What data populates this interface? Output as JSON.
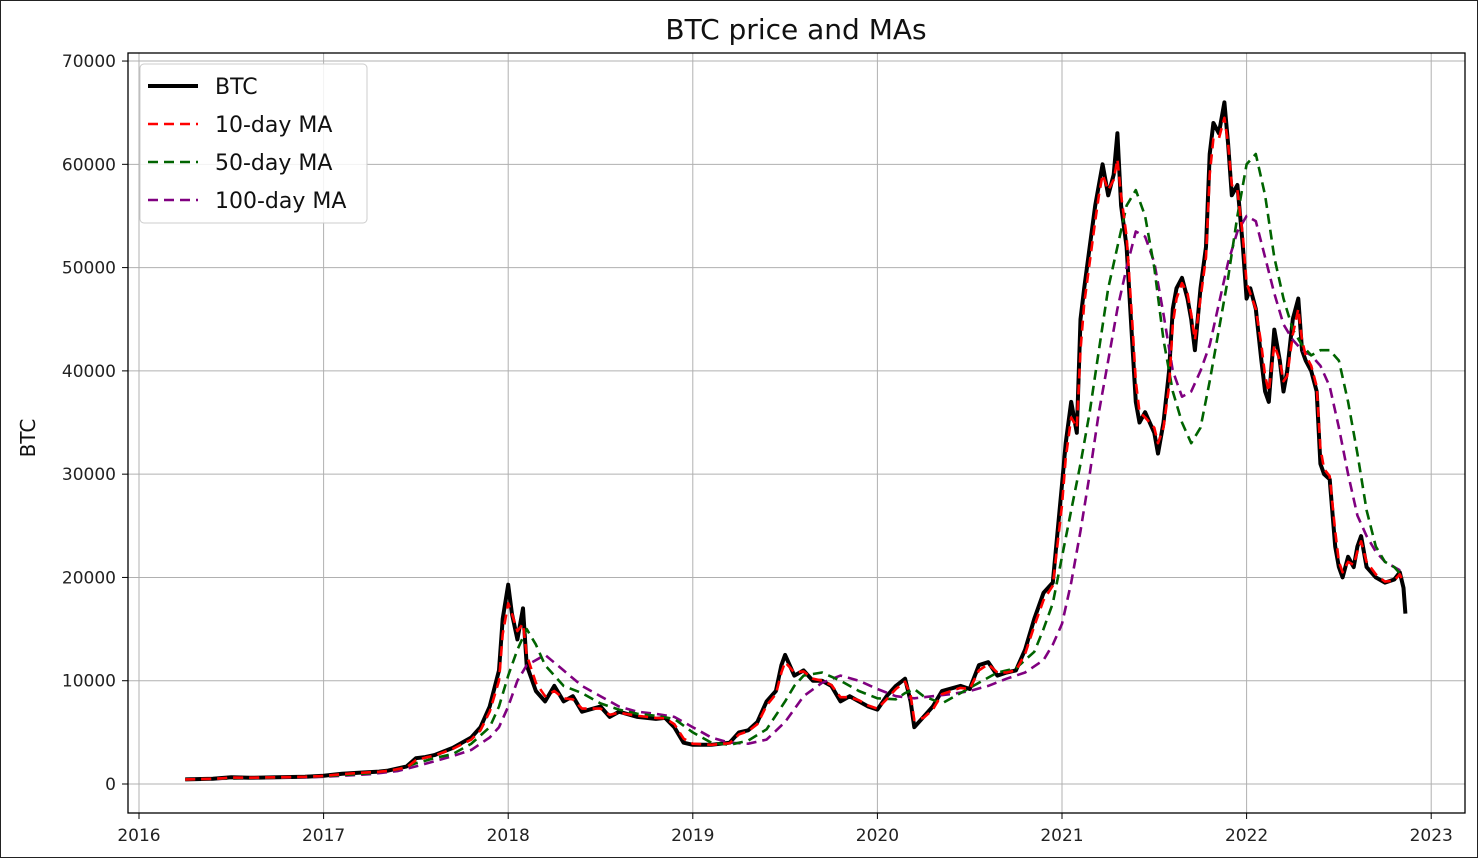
{
  "chart_data": {
    "type": "line",
    "title": "BTC price and MAs",
    "xlabel": "",
    "ylabel": "BTC",
    "xlim": [
      2016.0,
      2023.0
    ],
    "ylim": [
      -2800,
      71000
    ],
    "x_ticks": [
      "2016",
      "2017",
      "2018",
      "2019",
      "2020",
      "2021",
      "2022",
      "2023"
    ],
    "y_ticks": [
      "0",
      "10000",
      "20000",
      "30000",
      "40000",
      "50000",
      "60000",
      "70000"
    ],
    "grid": true,
    "legend_position": "top-left",
    "series": [
      {
        "name": "BTC",
        "color": "#000000",
        "dash": "solid",
        "x": [
          2016.25,
          2016.4,
          2016.5,
          2016.6,
          2016.75,
          2016.9,
          2017.0,
          2017.1,
          2017.2,
          2017.3,
          2017.35,
          2017.45,
          2017.5,
          2017.55,
          2017.6,
          2017.7,
          2017.8,
          2017.85,
          2017.9,
          2017.95,
          2017.97,
          2018.0,
          2018.02,
          2018.05,
          2018.08,
          2018.1,
          2018.15,
          2018.2,
          2018.25,
          2018.3,
          2018.35,
          2018.4,
          2018.5,
          2018.55,
          2018.6,
          2018.7,
          2018.8,
          2018.85,
          2018.9,
          2018.95,
          2019.0,
          2019.1,
          2019.2,
          2019.25,
          2019.3,
          2019.35,
          2019.4,
          2019.45,
          2019.48,
          2019.5,
          2019.55,
          2019.6,
          2019.65,
          2019.7,
          2019.75,
          2019.8,
          2019.85,
          2019.9,
          2019.95,
          2020.0,
          2020.05,
          2020.1,
          2020.15,
          2020.18,
          2020.2,
          2020.25,
          2020.3,
          2020.35,
          2020.45,
          2020.5,
          2020.55,
          2020.6,
          2020.65,
          2020.7,
          2020.75,
          2020.8,
          2020.85,
          2020.9,
          2020.95,
          2021.0,
          2021.02,
          2021.05,
          2021.08,
          2021.1,
          2021.12,
          2021.15,
          2021.18,
          2021.2,
          2021.22,
          2021.25,
          2021.28,
          2021.3,
          2021.32,
          2021.35,
          2021.38,
          2021.4,
          2021.42,
          2021.45,
          2021.5,
          2021.52,
          2021.55,
          2021.58,
          2021.6,
          2021.62,
          2021.65,
          2021.68,
          2021.7,
          2021.72,
          2021.75,
          2021.78,
          2021.8,
          2021.82,
          2021.85,
          2021.88,
          2021.9,
          2021.92,
          2021.95,
          2021.98,
          2022.0,
          2022.02,
          2022.05,
          2022.08,
          2022.1,
          2022.12,
          2022.15,
          2022.18,
          2022.2,
          2022.22,
          2022.25,
          2022.28,
          2022.3,
          2022.32,
          2022.35,
          2022.38,
          2022.4,
          2022.42,
          2022.45,
          2022.48,
          2022.5,
          2022.52,
          2022.55,
          2022.58,
          2022.6,
          2022.62,
          2022.65,
          2022.7,
          2022.75,
          2022.8,
          2022.83,
          2022.85,
          2022.86
        ],
        "y": [
          450,
          500,
          650,
          600,
          650,
          700,
          800,
          1000,
          1100,
          1200,
          1300,
          1700,
          2500,
          2600,
          2800,
          3500,
          4500,
          5500,
          7500,
          11000,
          16000,
          19300,
          16500,
          14000,
          17000,
          11500,
          9000,
          8000,
          9500,
          8000,
          8500,
          7000,
          7500,
          6500,
          7000,
          6500,
          6300,
          6400,
          5500,
          4000,
          3800,
          3800,
          4000,
          5000,
          5200,
          6000,
          8000,
          9000,
          11500,
          12500,
          10500,
          11000,
          10000,
          10000,
          9500,
          8000,
          8500,
          8000,
          7500,
          7200,
          8500,
          9500,
          10200,
          8000,
          5500,
          6500,
          7500,
          9000,
          9500,
          9200,
          11500,
          11800,
          10500,
          10800,
          11000,
          13000,
          16000,
          18500,
          19500,
          29000,
          33000,
          37000,
          34000,
          45000,
          48000,
          52000,
          56000,
          58000,
          60000,
          57000,
          59000,
          63000,
          56000,
          52000,
          43000,
          37000,
          35000,
          36000,
          34000,
          32000,
          35000,
          40000,
          46000,
          48000,
          49000,
          47000,
          45000,
          42000,
          48000,
          52000,
          61000,
          64000,
          63000,
          66000,
          62000,
          57000,
          58000,
          52000,
          47000,
          48000,
          46000,
          41000,
          38000,
          37000,
          44000,
          41000,
          38000,
          40000,
          45000,
          47000,
          42000,
          41000,
          40000,
          38000,
          31000,
          30000,
          29500,
          23000,
          21000,
          20000,
          22000,
          21000,
          23000,
          24000,
          21000,
          20000,
          19500,
          19800,
          20500,
          19000,
          16500
        ]
      },
      {
        "name": "10-day MA",
        "color": "#ff0000",
        "dash": "dashed",
        "x": [
          2016.25,
          2016.4,
          2016.5,
          2016.6,
          2016.75,
          2016.9,
          2017.0,
          2017.1,
          2017.2,
          2017.3,
          2017.35,
          2017.45,
          2017.5,
          2017.55,
          2017.6,
          2017.7,
          2017.8,
          2017.85,
          2017.9,
          2017.95,
          2017.97,
          2018.0,
          2018.02,
          2018.05,
          2018.08,
          2018.1,
          2018.15,
          2018.2,
          2018.25,
          2018.3,
          2018.35,
          2018.4,
          2018.5,
          2018.55,
          2018.6,
          2018.7,
          2018.8,
          2018.85,
          2018.9,
          2018.95,
          2019.0,
          2019.1,
          2019.2,
          2019.25,
          2019.3,
          2019.35,
          2019.4,
          2019.45,
          2019.48,
          2019.5,
          2019.55,
          2019.6,
          2019.65,
          2019.7,
          2019.75,
          2019.8,
          2019.85,
          2019.9,
          2019.95,
          2020.0,
          2020.05,
          2020.1,
          2020.15,
          2020.18,
          2020.2,
          2020.25,
          2020.3,
          2020.35,
          2020.45,
          2020.5,
          2020.55,
          2020.6,
          2020.65,
          2020.7,
          2020.75,
          2020.8,
          2020.85,
          2020.9,
          2020.95,
          2021.0,
          2021.02,
          2021.05,
          2021.08,
          2021.1,
          2021.12,
          2021.15,
          2021.18,
          2021.2,
          2021.22,
          2021.25,
          2021.28,
          2021.3,
          2021.32,
          2021.35,
          2021.38,
          2021.4,
          2021.42,
          2021.45,
          2021.5,
          2021.52,
          2021.55,
          2021.58,
          2021.6,
          2021.62,
          2021.65,
          2021.68,
          2021.7,
          2021.72,
          2021.75,
          2021.78,
          2021.8,
          2021.82,
          2021.85,
          2021.88,
          2021.9,
          2021.92,
          2021.95,
          2021.98,
          2022.0,
          2022.02,
          2022.05,
          2022.08,
          2022.1,
          2022.12,
          2022.15,
          2022.18,
          2022.2,
          2022.22,
          2022.25,
          2022.28,
          2022.3,
          2022.32,
          2022.35,
          2022.38,
          2022.4,
          2022.42,
          2022.45,
          2022.48,
          2022.5,
          2022.52,
          2022.55,
          2022.58,
          2022.6,
          2022.62,
          2022.65,
          2022.7,
          2022.75,
          2022.8,
          2022.83,
          2022.85
        ],
        "y": [
          450,
          500,
          620,
          610,
          650,
          700,
          780,
          950,
          1080,
          1180,
          1280,
          1600,
          2300,
          2550,
          2750,
          3400,
          4300,
          5200,
          7000,
          10000,
          14500,
          17500,
          16500,
          14800,
          15500,
          12500,
          9800,
          8500,
          9000,
          8300,
          8200,
          7300,
          7300,
          6700,
          6900,
          6600,
          6400,
          6350,
          5800,
          4400,
          3900,
          3800,
          3950,
          4800,
          5100,
          5800,
          7600,
          8700,
          10800,
          11800,
          10800,
          10900,
          10200,
          10000,
          9600,
          8400,
          8400,
          8100,
          7600,
          7300,
          8200,
          9200,
          9900,
          8600,
          6200,
          6400,
          7200,
          8700,
          9300,
          9200,
          11000,
          11600,
          10800,
          10800,
          11000,
          12600,
          15300,
          17800,
          19200,
          27000,
          31500,
          35500,
          34500,
          42000,
          46500,
          50500,
          54500,
          57000,
          59000,
          57500,
          58500,
          60500,
          57000,
          53000,
          45000,
          39000,
          36000,
          35500,
          34500,
          33000,
          34500,
          38500,
          44500,
          47000,
          48500,
          47500,
          45500,
          43000,
          47000,
          51000,
          59000,
          62500,
          62500,
          64500,
          62000,
          58000,
          57500,
          53000,
          48500,
          47500,
          46000,
          42500,
          39500,
          38000,
          42500,
          41000,
          39000,
          39500,
          43500,
          46000,
          43000,
          41500,
          40500,
          38500,
          32500,
          30500,
          29800,
          24500,
          21500,
          20500,
          21500,
          21200,
          22500,
          23500,
          21500,
          20300,
          19600,
          19700,
          20300,
          19500
        ]
      },
      {
        "name": "50-day MA",
        "color": "#006400",
        "dash": "dashed",
        "x": [
          2016.25,
          2016.5,
          2016.75,
          2017.0,
          2017.25,
          2017.4,
          2017.5,
          2017.6,
          2017.7,
          2017.8,
          2017.9,
          2017.95,
          2018.0,
          2018.05,
          2018.1,
          2018.15,
          2018.2,
          2018.3,
          2018.4,
          2018.5,
          2018.6,
          2018.7,
          2018.8,
          2018.9,
          2019.0,
          2019.1,
          2019.2,
          2019.3,
          2019.4,
          2019.5,
          2019.55,
          2019.6,
          2019.7,
          2019.8,
          2019.9,
          2020.0,
          2020.1,
          2020.15,
          2020.2,
          2020.25,
          2020.35,
          2020.45,
          2020.55,
          2020.65,
          2020.75,
          2020.85,
          2020.9,
          2020.95,
          2021.0,
          2021.05,
          2021.1,
          2021.15,
          2021.2,
          2021.25,
          2021.3,
          2021.35,
          2021.4,
          2021.45,
          2021.5,
          2021.55,
          2021.6,
          2021.65,
          2021.7,
          2021.75,
          2021.8,
          2021.85,
          2021.9,
          2021.95,
          2022.0,
          2022.05,
          2022.1,
          2022.15,
          2022.2,
          2022.25,
          2022.3,
          2022.35,
          2022.4,
          2022.45,
          2022.5,
          2022.55,
          2022.6,
          2022.65,
          2022.7,
          2022.75,
          2022.8,
          2022.85
        ],
        "y": [
          450,
          550,
          620,
          750,
          1050,
          1400,
          2000,
          2500,
          2900,
          3900,
          5500,
          7500,
          10500,
          13000,
          15000,
          13500,
          11500,
          9500,
          8800,
          7800,
          7200,
          6800,
          6600,
          6300,
          5000,
          4000,
          3800,
          4200,
          5300,
          8000,
          9500,
          10500,
          10800,
          10000,
          9000,
          8300,
          8200,
          8800,
          9200,
          8500,
          7800,
          8800,
          9800,
          10800,
          11200,
          12800,
          15000,
          17500,
          22000,
          26500,
          31000,
          36000,
          42000,
          48000,
          52000,
          56000,
          57500,
          55000,
          50000,
          43000,
          38000,
          35000,
          33000,
          34500,
          39000,
          44000,
          49000,
          55000,
          60000,
          61000,
          57000,
          51000,
          47000,
          44000,
          42500,
          41500,
          42000,
          42000,
          41000,
          37000,
          32000,
          26500,
          23000,
          21500,
          21000,
          20000
        ]
      },
      {
        "name": "100-day MA",
        "color": "#800080",
        "dash": "dashed",
        "x": [
          2016.25,
          2016.5,
          2016.75,
          2017.0,
          2017.25,
          2017.4,
          2017.5,
          2017.6,
          2017.7,
          2017.8,
          2017.9,
          2017.95,
          2018.0,
          2018.05,
          2018.1,
          2018.15,
          2018.2,
          2018.3,
          2018.4,
          2018.5,
          2018.6,
          2018.7,
          2018.8,
          2018.9,
          2019.0,
          2019.1,
          2019.2,
          2019.3,
          2019.4,
          2019.5,
          2019.6,
          2019.7,
          2019.8,
          2019.9,
          2020.0,
          2020.1,
          2020.2,
          2020.3,
          2020.4,
          2020.5,
          2020.6,
          2020.7,
          2020.8,
          2020.9,
          2020.95,
          2021.0,
          2021.05,
          2021.1,
          2021.15,
          2021.2,
          2021.25,
          2021.3,
          2021.35,
          2021.4,
          2021.45,
          2021.5,
          2021.55,
          2021.6,
          2021.65,
          2021.7,
          2021.75,
          2021.8,
          2021.85,
          2021.9,
          2021.95,
          2022.0,
          2022.05,
          2022.1,
          2022.15,
          2022.2,
          2022.25,
          2022.3,
          2022.35,
          2022.4,
          2022.45,
          2022.5,
          2022.55,
          2022.6,
          2022.65,
          2022.7,
          2022.75,
          2022.8,
          2022.85
        ],
        "y": [
          450,
          520,
          600,
          700,
          950,
          1250,
          1700,
          2200,
          2700,
          3300,
          4500,
          5500,
          7500,
          10000,
          11500,
          12000,
          12500,
          11000,
          9500,
          8500,
          7500,
          7000,
          6800,
          6500,
          5500,
          4500,
          4000,
          3900,
          4300,
          6000,
          8500,
          9800,
          10500,
          10000,
          9200,
          8500,
          8300,
          8500,
          8700,
          9000,
          9500,
          10200,
          10800,
          12000,
          13500,
          15500,
          19500,
          24500,
          30000,
          36000,
          41000,
          46000,
          50000,
          53500,
          53000,
          50500,
          45500,
          40000,
          37500,
          38000,
          40000,
          42500,
          46500,
          50500,
          53500,
          55000,
          54500,
          51000,
          47500,
          44500,
          43000,
          42000,
          41500,
          40500,
          38500,
          34500,
          30000,
          26000,
          24000,
          22500,
          21500,
          21000,
          20500
        ]
      }
    ]
  }
}
